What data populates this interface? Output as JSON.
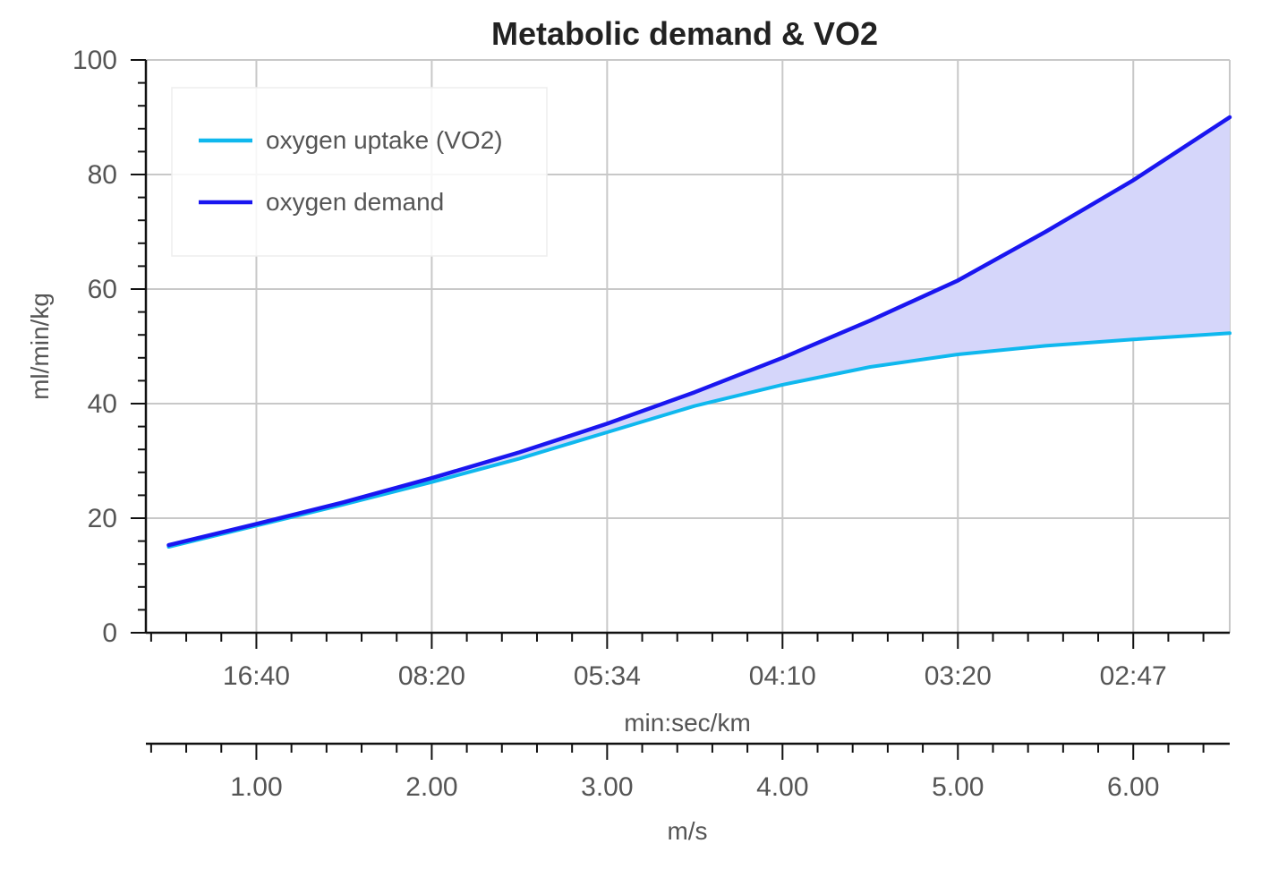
{
  "chart_data": {
    "type": "line",
    "title": "Metabolic demand & VO2",
    "ylabel": "ml/min/kg",
    "xlabel_pace": "min:sec/km",
    "xlabel_speed": "m/s",
    "ylim": [
      0,
      100
    ],
    "xlim": [
      0.37,
      6.55
    ],
    "y_ticks": [
      0,
      20,
      40,
      60,
      80,
      100
    ],
    "x_ticks": [
      1.0,
      2.0,
      3.0,
      4.0,
      5.0,
      6.0
    ],
    "x_tick_labels_pace": [
      "16:40",
      "08:20",
      "05:34",
      "04:10",
      "03:20",
      "02:47"
    ],
    "x_tick_labels_speed": [
      "1.00",
      "2.00",
      "3.00",
      "4.00",
      "5.00",
      "6.00"
    ],
    "grid": true,
    "legend_position": "top-left",
    "fill_between": {
      "upper": "oxygen demand",
      "lower": "oxygen uptake (VO2)",
      "color": "#d5d6fa"
    },
    "x": [
      0.5,
      1.0,
      1.5,
      2.0,
      2.5,
      3.0,
      3.5,
      4.0,
      4.5,
      5.0,
      5.5,
      6.0,
      6.55
    ],
    "series": [
      {
        "name": "oxygen uptake (VO2)",
        "color": "#0fb8ee",
        "values": [
          15.0,
          18.7,
          22.4,
          26.3,
          30.4,
          35.0,
          39.6,
          43.3,
          46.4,
          48.6,
          50.1,
          51.2,
          52.3
        ]
      },
      {
        "name": "oxygen demand",
        "color": "#1a16f0",
        "values": [
          15.3,
          19.0,
          22.8,
          27.0,
          31.5,
          36.5,
          42.0,
          48.0,
          54.5,
          61.5,
          70.0,
          79.0,
          90.0
        ]
      }
    ]
  }
}
